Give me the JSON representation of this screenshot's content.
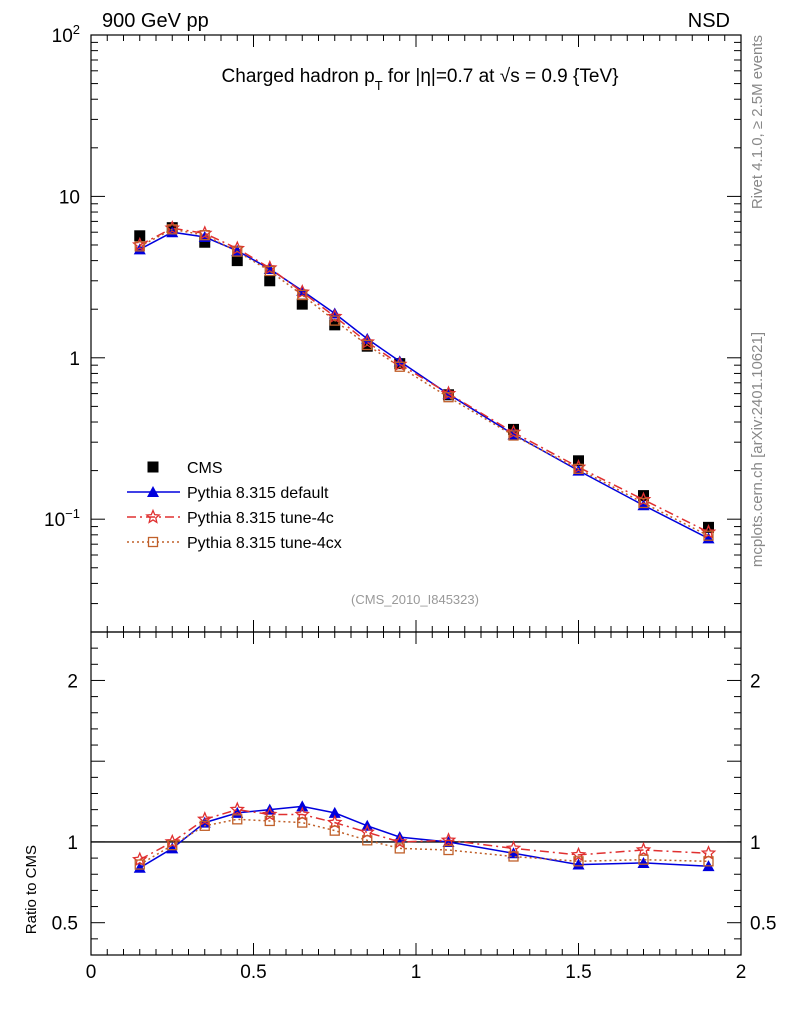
{
  "header": {
    "left": "900 GeV pp",
    "right": "NSD"
  },
  "side_labels": {
    "rivet": "Rivet 4.1.0, ≥ 2.5M events",
    "mcplots": "mcplots.cern.ch [arXiv:2401.10621]"
  },
  "chart_data": {
    "type": "line",
    "title": "Charged hadron p_T for |η|=0.7 at √s = 0.9 {TeV}",
    "title_parts": {
      "pre": "Charged hadron p",
      "sub": "T",
      "mid": " for |η|=0.7 at ",
      "sqrt": "√",
      "post": "s = 0.9 {TeV}"
    },
    "analysis_id": "(CMS_2010_I845323)",
    "xlabel": "",
    "ylabel": "",
    "ratio_ylabel": "Ratio to CMS",
    "xlim": [
      0,
      2
    ],
    "ylim_log": [
      0.02,
      100
    ],
    "ratio_ylim": [
      0.3,
      2.3
    ],
    "x_tick_labels": [
      "0",
      "0.5",
      "1",
      "1.5",
      "2"
    ],
    "y_tick_labels": {
      "1e-1": {
        "base": "10",
        "exp": "−1"
      },
      "1": {
        "base": "1",
        "exp": ""
      },
      "10": {
        "base": "10",
        "exp": ""
      },
      "100": {
        "base": "10",
        "exp": "2"
      }
    },
    "ratio_tick_labels": [
      "0.5",
      "1",
      "2"
    ],
    "legend_position": "lower-left",
    "x": [
      0.15,
      0.25,
      0.35,
      0.45,
      0.55,
      0.65,
      0.75,
      0.85,
      0.95,
      1.1,
      1.3,
      1.5,
      1.7,
      1.9
    ],
    "series": [
      {
        "name": "CMS",
        "color": "#000000",
        "marker": "square",
        "line": "none",
        "values": [
          5.7,
          6.4,
          5.2,
          4.0,
          3.0,
          2.15,
          1.6,
          1.18,
          0.92,
          0.59,
          0.36,
          0.23,
          0.14,
          0.089
        ]
      },
      {
        "name": "Pythia 8.315 default",
        "color": "#0000dd",
        "marker": "triangle",
        "line": "solid",
        "values": [
          4.7,
          6.0,
          5.6,
          4.6,
          3.55,
          2.6,
          1.88,
          1.31,
          0.95,
          0.595,
          0.335,
          0.2,
          0.122,
          0.076
        ]
      },
      {
        "name": "Pythia 8.315 tune-4c",
        "color": "#e03030",
        "marker": "star",
        "line": "dashdot",
        "values": [
          5.0,
          6.35,
          5.9,
          4.75,
          3.6,
          2.55,
          1.8,
          1.25,
          0.91,
          0.6,
          0.345,
          0.21,
          0.132,
          0.083
        ]
      },
      {
        "name": "Pythia 8.315 tune-4cx",
        "color": "#c0602a",
        "marker": "open-square",
        "line": "dotted",
        "values": [
          4.9,
          6.25,
          5.75,
          4.55,
          3.45,
          2.45,
          1.7,
          1.2,
          0.88,
          0.57,
          0.33,
          0.205,
          0.126,
          0.079
        ]
      }
    ],
    "ratio_series": [
      {
        "name": "Pythia 8.315 default",
        "values": [
          0.84,
          0.96,
          1.12,
          1.18,
          1.2,
          1.22,
          1.18,
          1.1,
          1.03,
          1.0,
          0.93,
          0.86,
          0.87,
          0.85
        ]
      },
      {
        "name": "Pythia 8.315 tune-4c",
        "values": [
          0.89,
          1.0,
          1.14,
          1.2,
          1.17,
          1.17,
          1.12,
          1.06,
          1.0,
          1.01,
          0.96,
          0.92,
          0.95,
          0.93
        ]
      },
      {
        "name": "Pythia 8.315 tune-4cx",
        "values": [
          0.86,
          0.98,
          1.1,
          1.14,
          1.13,
          1.12,
          1.07,
          1.01,
          0.96,
          0.95,
          0.91,
          0.88,
          0.89,
          0.88
        ]
      }
    ]
  }
}
